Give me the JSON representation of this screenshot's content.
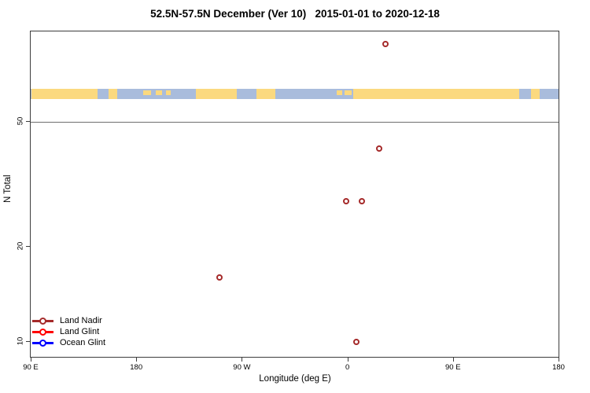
{
  "title": "52.5N-57.5N December (Ver 10)   2015-01-01 to 2020-12-18",
  "chart_data": {
    "type": "scatter",
    "title": "52.5N-57.5N December (Ver 10)   2015-01-01 to 2020-12-18",
    "xlabel": "Longitude (deg E)",
    "ylabel": "N Total",
    "x_axis": {
      "tick_labels": [
        "90 E",
        "180",
        "90 W",
        "0",
        "90 E",
        "180"
      ],
      "start_deg": 90,
      "span_deg": 450,
      "note": "longitude axis wraps: 90E..180..90W..0..90E..180"
    },
    "y_axis": {
      "scale": "log10",
      "tick_labels": [
        "10",
        "20",
        "50"
      ],
      "tick_values": [
        10,
        20,
        50
      ],
      "range": [
        8.9,
        97
      ]
    },
    "reference_line_y": 50,
    "grid": "off",
    "legend_position": "bottom-left",
    "series": [
      {
        "name": "Land Nadir",
        "color": "#A52A2A",
        "points": [
          {
            "lon": 32,
            "n": 88
          },
          {
            "lon": 26.5,
            "n": 41
          },
          {
            "lon": -2,
            "n": 28
          },
          {
            "lon": 12,
            "n": 28
          },
          {
            "lon": -110,
            "n": 16
          },
          {
            "lon": 7.3,
            "n": 10
          }
        ]
      },
      {
        "name": "Land Glint",
        "color": "#FF0000",
        "points": []
      },
      {
        "name": "Ocean Glint",
        "color": "#0000FF",
        "points": []
      }
    ],
    "map_band": {
      "description": "land/ocean strip for 52.5N-57.5N across wrapped longitudes",
      "land_color": "#FBD97F",
      "ocean_color": "#A9BCDC",
      "land_segments_deg": [
        [
          90,
          146
        ],
        [
          156,
          163
        ],
        [
          230,
          265
        ],
        [
          282,
          298
        ],
        [
          364,
          506
        ],
        [
          516,
          523
        ]
      ],
      "island_segments_deg": [
        [
          185,
          192
        ],
        [
          196,
          201
        ],
        [
          205,
          209
        ],
        [
          350,
          355
        ],
        [
          357,
          363
        ]
      ]
    }
  },
  "legend": {
    "items": [
      {
        "label": "Land Nadir",
        "color": "#A52A2A"
      },
      {
        "label": "Land Glint",
        "color": "#FF0000"
      },
      {
        "label": "Ocean Glint",
        "color": "#0000FF"
      }
    ]
  }
}
